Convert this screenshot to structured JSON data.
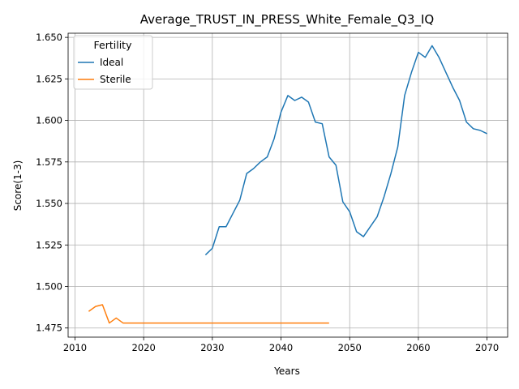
{
  "chart_data": {
    "type": "line",
    "title": "Average_TRUST_IN_PRESS_White_Female_Q3_IQ",
    "xlabel": "Years",
    "ylabel": "Score(1-3)",
    "xlim": [
      2009,
      2073
    ],
    "ylim": [
      1.4695,
      1.6525
    ],
    "xticks": [
      2010,
      2020,
      2030,
      2040,
      2050,
      2060,
      2070
    ],
    "yticks": [
      1.475,
      1.5,
      1.525,
      1.55,
      1.575,
      1.6,
      1.625,
      1.65
    ],
    "grid": true,
    "legend": {
      "title": "Fertility",
      "position": "top-left"
    },
    "series": [
      {
        "name": "Ideal",
        "color": "#1f77b4",
        "x": [
          2029,
          2030,
          2031,
          2032,
          2033,
          2034,
          2035,
          2036,
          2037,
          2038,
          2039,
          2040,
          2041,
          2042,
          2043,
          2044,
          2045,
          2046,
          2047,
          2048,
          2049,
          2050,
          2051,
          2052,
          2053,
          2054,
          2055,
          2056,
          2057,
          2058,
          2059,
          2060,
          2061,
          2062,
          2063,
          2064,
          2065,
          2066,
          2067,
          2068,
          2069,
          2070
        ],
        "y": [
          1.519,
          1.523,
          1.536,
          1.536,
          1.544,
          1.552,
          1.568,
          1.571,
          1.575,
          1.578,
          1.589,
          1.605,
          1.615,
          1.612,
          1.614,
          1.611,
          1.599,
          1.598,
          1.578,
          1.573,
          1.551,
          1.545,
          1.533,
          1.53,
          1.536,
          1.542,
          1.554,
          1.568,
          1.584,
          1.615,
          1.629,
          1.641,
          1.638,
          1.645,
          1.638,
          1.629,
          1.62,
          1.612,
          1.599,
          1.595,
          1.594,
          1.592
        ]
      },
      {
        "name": "Sterile",
        "color": "#ff7f0e",
        "x": [
          2012,
          2013,
          2014,
          2015,
          2016,
          2017,
          2018,
          2019,
          2020,
          2021,
          2022,
          2023,
          2024,
          2025,
          2026,
          2027,
          2028,
          2029,
          2030,
          2031,
          2032,
          2033,
          2034,
          2035,
          2036,
          2037,
          2038,
          2039,
          2040,
          2041,
          2042,
          2043,
          2044,
          2045,
          2046,
          2047
        ],
        "y": [
          1.485,
          1.488,
          1.489,
          1.478,
          1.481,
          1.478,
          1.478,
          1.478,
          1.478,
          1.478,
          1.478,
          1.478,
          1.478,
          1.478,
          1.478,
          1.478,
          1.478,
          1.478,
          1.478,
          1.478,
          1.478,
          1.478,
          1.478,
          1.478,
          1.478,
          1.478,
          1.478,
          1.478,
          1.478,
          1.478,
          1.478,
          1.478,
          1.478,
          1.478,
          1.478,
          1.478
        ]
      }
    ]
  }
}
